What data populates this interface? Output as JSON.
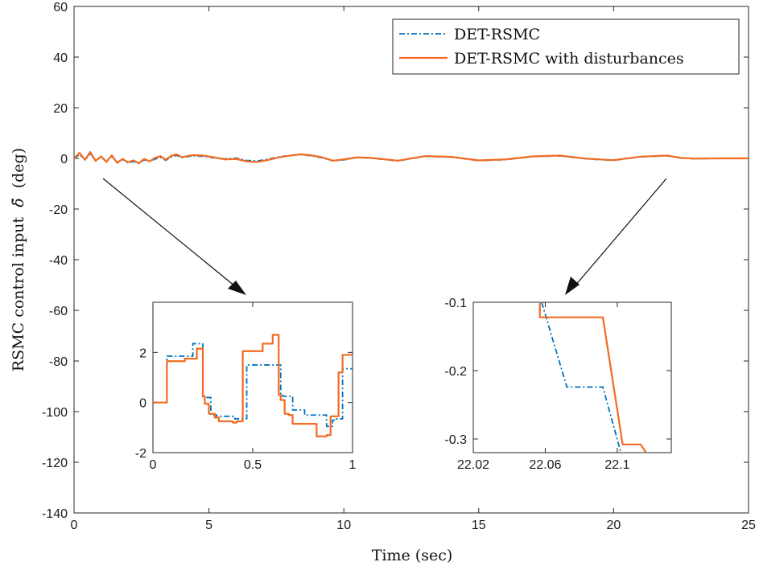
{
  "chart_data": [
    {
      "id": "main",
      "type": "line",
      "title": "",
      "xlabel": "Time (sec)",
      "ylabel": "RSMC control input",
      "ylabel_symbol": "δ̃",
      "ylabel_unit": "(deg)",
      "xlim": [
        0,
        25
      ],
      "ylim": [
        -140,
        60
      ],
      "xticks": [
        0,
        5,
        10,
        15,
        20,
        25
      ],
      "yticks": [
        60,
        40,
        20,
        0,
        -20,
        -40,
        -60,
        -80,
        -100,
        -120,
        -140
      ],
      "legend_position": "top-right",
      "series": [
        {
          "name": "DET-RSMC",
          "color": "#0072BD",
          "style": "dash-dot",
          "x": [
            0,
            0.2,
            0.4,
            0.6,
            0.8,
            1.0,
            1.2,
            1.4,
            1.6,
            1.8,
            2.0,
            2.2,
            2.4,
            2.6,
            2.8,
            3.0,
            3.2,
            3.4,
            3.6,
            3.8,
            4.0,
            4.4,
            4.8,
            5.2,
            5.6,
            6.0,
            6.4,
            6.8,
            7.2,
            7.6,
            8.0,
            8.4,
            8.8,
            9.2,
            9.6,
            10.0,
            10.5,
            11.0,
            12.0,
            13.0,
            14.0,
            15.0,
            16.0,
            17.0,
            18.0,
            19.0,
            20.0,
            21.0,
            22.0,
            22.5,
            23.0,
            24.0,
            25.0
          ],
          "y": [
            0,
            1.5,
            -0.5,
            1.6,
            -0.8,
            0.5,
            -1.0,
            0.8,
            -1.5,
            -0.4,
            -1.8,
            -1.2,
            -2.0,
            -0.6,
            -1.1,
            -0.3,
            0.4,
            -0.8,
            0.5,
            1.2,
            0.3,
            1.0,
            0.8,
            0.2,
            -0.2,
            0.1,
            -0.8,
            -1.0,
            -0.3,
            0.6,
            1.2,
            1.5,
            1.0,
            0.2,
            -1.0,
            -0.6,
            0.3,
            0.1,
            -1.0,
            0.8,
            0.5,
            -0.9,
            -0.5,
            0.7,
            1.0,
            -0.2,
            -0.8,
            0.6,
            1.0,
            0.1,
            -0.1,
            0,
            0
          ]
        },
        {
          "name": "DET-RSMC with disturbances",
          "color": "#F26B21",
          "style": "solid",
          "x": [
            0,
            0.2,
            0.4,
            0.6,
            0.8,
            1.0,
            1.2,
            1.4,
            1.6,
            1.8,
            2.0,
            2.2,
            2.4,
            2.6,
            2.8,
            3.0,
            3.2,
            3.4,
            3.6,
            3.8,
            4.0,
            4.4,
            4.8,
            5.2,
            5.6,
            6.0,
            6.4,
            6.8,
            7.2,
            7.6,
            8.0,
            8.4,
            8.8,
            9.2,
            9.6,
            10.0,
            10.5,
            11.0,
            12.0,
            13.0,
            14.0,
            15.0,
            16.0,
            17.0,
            18.0,
            19.0,
            20.0,
            21.0,
            22.0,
            22.5,
            23.0,
            24.0,
            25.0
          ],
          "y": [
            0,
            2.2,
            -0.6,
            2.5,
            -1.0,
            0.8,
            -1.4,
            1.2,
            -1.8,
            -0.2,
            -1.5,
            -0.8,
            -1.9,
            -0.2,
            -1.2,
            0.2,
            0.9,
            -0.5,
            1.0,
            1.6,
            0.5,
            1.3,
            1.1,
            0.4,
            -0.4,
            -0.2,
            -1.2,
            -1.4,
            -0.6,
            0.4,
            1.1,
            1.6,
            1.2,
            0.4,
            -0.9,
            -0.4,
            0.4,
            0.2,
            -0.9,
            0.9,
            0.6,
            -0.8,
            -0.4,
            0.8,
            1.1,
            -0.1,
            -0.7,
            0.7,
            1.1,
            0.2,
            -0.1,
            0,
            0
          ]
        }
      ]
    },
    {
      "id": "inset-left",
      "type": "line",
      "xlim": [
        0,
        1
      ],
      "ylim": [
        -2,
        4
      ],
      "xticks": [
        0,
        0.5,
        1
      ],
      "yticks": [
        2,
        0,
        -2
      ],
      "series": [
        {
          "name": "DET-RSMC",
          "x": [
            0,
            0.07,
            0.07,
            0.12,
            0.12,
            0.2,
            0.2,
            0.25,
            0.25,
            0.27,
            0.27,
            0.29,
            0.29,
            0.32,
            0.32,
            0.33,
            0.33,
            0.41,
            0.41,
            0.45,
            0.45,
            0.47,
            0.47,
            0.49,
            0.49,
            0.6,
            0.6,
            0.64,
            0.64,
            0.65,
            0.65,
            0.7,
            0.7,
            0.76,
            0.76,
            0.87,
            0.87,
            0.9,
            0.9,
            0.91,
            0.91,
            0.95,
            0.95,
            1.0
          ],
          "y": [
            0,
            0,
            1.85,
            1.85,
            1.85,
            1.85,
            2.35,
            2.35,
            0.15,
            0.15,
            0.2,
            0.2,
            -0.5,
            -0.5,
            -0.55,
            -0.55,
            -0.55,
            -0.55,
            -0.65,
            -0.65,
            -0.65,
            -0.65,
            1.5,
            1.5,
            1.5,
            1.5,
            1.5,
            1.5,
            0.3,
            0.3,
            0.25,
            0.25,
            -0.3,
            -0.3,
            -0.5,
            -0.5,
            -0.95,
            -0.95,
            -0.7,
            -0.7,
            -0.65,
            -0.65,
            1.35,
            1.35
          ]
        },
        {
          "name": "DET-RSMC with disturbances",
          "x": [
            0,
            0.07,
            0.07,
            0.16,
            0.16,
            0.22,
            0.22,
            0.25,
            0.25,
            0.26,
            0.26,
            0.28,
            0.28,
            0.31,
            0.31,
            0.33,
            0.33,
            0.37,
            0.37,
            0.4,
            0.4,
            0.42,
            0.42,
            0.45,
            0.45,
            0.47,
            0.47,
            0.55,
            0.55,
            0.57,
            0.57,
            0.6,
            0.6,
            0.63,
            0.63,
            0.64,
            0.64,
            0.66,
            0.66,
            0.68,
            0.68,
            0.7,
            0.7,
            0.76,
            0.76,
            0.82,
            0.82,
            0.87,
            0.87,
            0.89,
            0.89,
            0.93,
            0.93,
            0.95,
            0.95,
            0.97,
            0.97,
            1.0
          ],
          "y": [
            0,
            0,
            1.65,
            1.65,
            1.75,
            1.75,
            2.15,
            2.15,
            0.25,
            0.25,
            -0.05,
            -0.05,
            -0.45,
            -0.45,
            -0.6,
            -0.6,
            -0.75,
            -0.75,
            -0.75,
            -0.75,
            -0.8,
            -0.8,
            -0.75,
            -0.75,
            2.05,
            2.05,
            2.05,
            2.05,
            2.35,
            2.35,
            2.35,
            2.35,
            2.7,
            2.7,
            0.3,
            0.3,
            0.1,
            0.1,
            -0.45,
            -0.45,
            -0.5,
            -0.5,
            -0.85,
            -0.85,
            -0.85,
            -0.85,
            -1.35,
            -1.35,
            -1.3,
            -1.3,
            -0.55,
            -0.55,
            1.2,
            1.2,
            1.9,
            1.9,
            1.9,
            1.9
          ]
        }
      ]
    },
    {
      "id": "inset-right",
      "type": "line",
      "xlim": [
        22.02,
        22.13
      ],
      "ylim": [
        -0.32,
        -0.1
      ],
      "xticks": [
        22.02,
        22.06,
        22.1
      ],
      "xtick_labels": [
        "22.02",
        "22.06",
        "22.1"
      ],
      "yticks": [
        -0.1,
        -0.2,
        -0.3
      ],
      "ytick_labels": [
        "-0.1",
        "-0.2",
        "-0.3"
      ],
      "series": [
        {
          "name": "DET-RSMC",
          "x": [
            22.058,
            22.072,
            22.072,
            22.092,
            22.102
          ],
          "y": [
            -0.1,
            -0.224,
            -0.224,
            -0.224,
            -0.32
          ]
        },
        {
          "name": "DET-RSMC with disturbances",
          "x": [
            22.057,
            22.057,
            22.072,
            22.092,
            22.092,
            22.103,
            22.113,
            22.116
          ],
          "y": [
            -0.1,
            -0.122,
            -0.122,
            -0.122,
            -0.122,
            -0.308,
            -0.308,
            -0.32
          ]
        }
      ]
    }
  ]
}
